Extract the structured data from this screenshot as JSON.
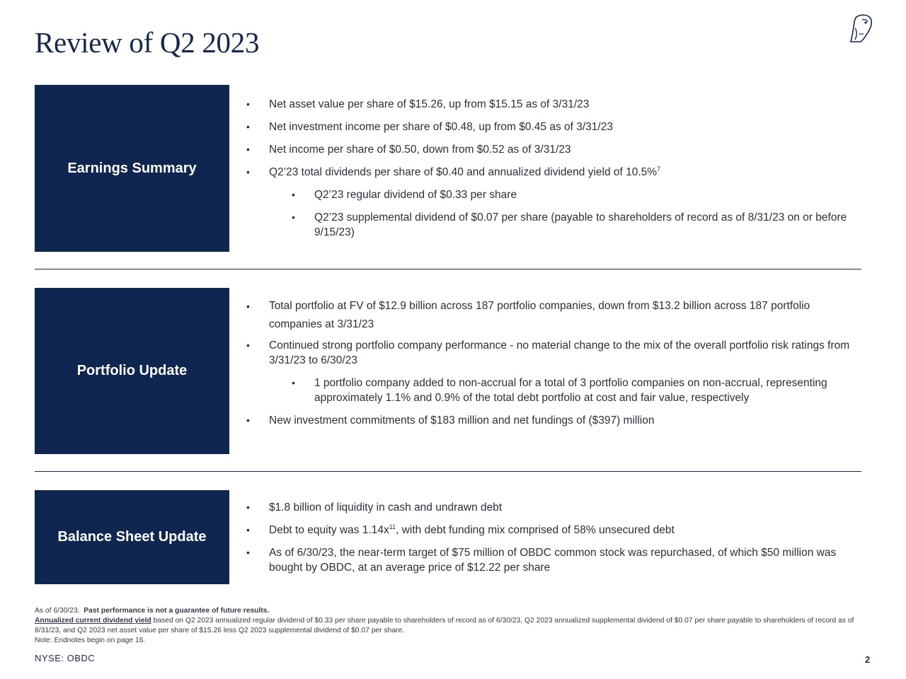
{
  "page_title": "Review of Q2 2023",
  "logo_icon": "owl-icon",
  "sections": [
    {
      "label": "Earnings Summary",
      "bullets": [
        {
          "text": "Net asset value per share of $15.26, up from $15.15 as of 3/31/23"
        },
        {
          "text": "Net investment income per share of $0.48, up from $0.45 as of 3/31/23"
        },
        {
          "text": "Net income per share of $0.50, down from $0.52 as of 3/31/23"
        },
        {
          "text": "Q2’23 total dividends per share of $0.40 and annualized dividend yield of 10.5%",
          "sup": "7"
        },
        {
          "text": "Q2’23 regular dividend of $0.33 per share"
        },
        {
          "text": "Q2’23 supplemental dividend of $0.07 per share (payable to shareholders of record as of 8/31/23 on or before 9/15/23)"
        }
      ]
    },
    {
      "label": "Portfolio Update",
      "bullets": [
        {
          "text": "Total portfolio at FV of $12.9 billion across 187 portfolio companies, down from $13.2 billion across 187 portfolio companies at 3/31/23"
        },
        {
          "text": "Continued strong portfolio company performance - no material change to the mix of the overall portfolio risk ratings from 3/31/23 to 6/30/23"
        },
        {
          "text": "1 portfolio company added to non-accrual for a total of 3 portfolio companies on non-accrual, representing approximately 1.1% and 0.9% of the total debt portfolio at cost and fair value, respectively"
        },
        {
          "text": "New investment commitments of $183 million and net fundings of ($397) million"
        }
      ]
    },
    {
      "label": "Balance Sheet Update",
      "bullets": [
        {
          "text": "$1.8 billion of liquidity in cash and undrawn debt"
        },
        {
          "text": "Debt to equity was 1.14x",
          "sup": "11",
          "suffix": ", with debt funding mix comprised of 58% unsecured debt"
        },
        {
          "text": "As of 6/30/23, the near-term target of $75 million of OBDC common stock was repurchased, of which $50 million was bought by OBDC, at an average price of $12.22 per share"
        }
      ]
    }
  ],
  "footnote": {
    "as_of": "As of 6/30/23.",
    "disclaimer": "Past performance is not a guarantee of future results.",
    "yield_term": "Annualized current dividend yield",
    "yield_text": " based on Q2 2023 annualized regular dividend of $0.33 per share payable to shareholders of record as of 6/30/23, Q2 2023 annualized supplemental dividend of $0.07 per share payable to shareholders of record as of 8/31/23, and Q2 2023 net asset value per share of $15.26 less Q2 2023 supplemental dividend of $0.07 per share.",
    "endnotes": "Note: Endnotes begin on page 16."
  },
  "ticker": "NYSE: OBDC",
  "page_number": "2",
  "colors": {
    "navy": "#0f2750",
    "title": "#13294b"
  }
}
